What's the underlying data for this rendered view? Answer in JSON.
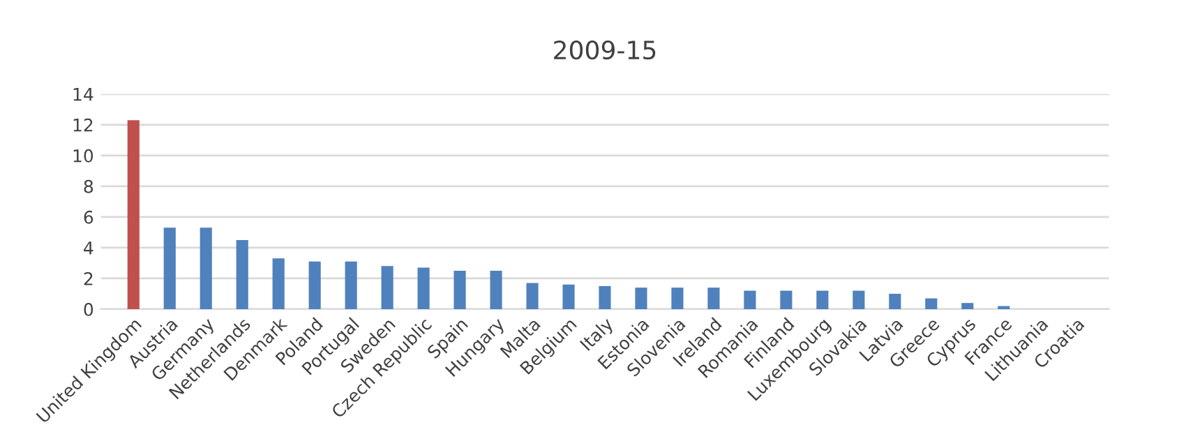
{
  "chart_data": {
    "type": "bar",
    "title": "2009-15",
    "categories": [
      "United Kingdom",
      "Austria",
      "Germany",
      "Netherlands",
      "Denmark",
      "Poland",
      "Portugal",
      "Sweden",
      "Czech Republic",
      "Spain",
      "Hungary",
      "Malta",
      "Belgium",
      "Italy",
      "Estonia",
      "Slovenia",
      "Ireland",
      "Romania",
      "Finland",
      "Luxembourg",
      "Slovakia",
      "Latvia",
      "Greece",
      "Cyprus",
      "France",
      "Lithuania",
      "Croatia"
    ],
    "values": [
      12.3,
      5.3,
      5.3,
      4.5,
      3.3,
      3.1,
      3.1,
      2.8,
      2.7,
      2.5,
      2.5,
      1.7,
      1.6,
      1.5,
      1.4,
      1.4,
      1.4,
      1.2,
      1.2,
      1.2,
      1.2,
      1.0,
      0.7,
      0.4,
      0.2,
      0,
      0
    ],
    "colors": [
      "#c0504d",
      "#4f81bd",
      "#4f81bd",
      "#4f81bd",
      "#4f81bd",
      "#4f81bd",
      "#4f81bd",
      "#4f81bd",
      "#4f81bd",
      "#4f81bd",
      "#4f81bd",
      "#4f81bd",
      "#4f81bd",
      "#4f81bd",
      "#4f81bd",
      "#4f81bd",
      "#4f81bd",
      "#4f81bd",
      "#4f81bd",
      "#4f81bd",
      "#4f81bd",
      "#4f81bd",
      "#4f81bd",
      "#4f81bd",
      "#4f81bd",
      "#4f81bd",
      "#4f81bd"
    ],
    "ylim": [
      0,
      14
    ],
    "yticks": [
      0,
      2,
      4,
      6,
      8,
      10,
      12,
      14
    ],
    "grid": "y"
  }
}
